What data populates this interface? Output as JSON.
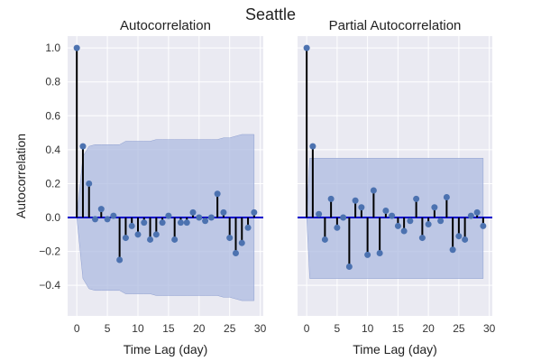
{
  "figure": {
    "title": "Seattle"
  },
  "colors": {
    "background": "#eaeaf2",
    "grid": "#ffffff",
    "band": "#aebbe0",
    "stem": "#000000",
    "marker": "#4c72b0",
    "zero_line": "#0000cc"
  },
  "chart_data": [
    {
      "type": "stem",
      "title": "Autocorrelation",
      "xlabel": "Time Lag (day)",
      "ylabel": "Autocorrelation",
      "xlim": [
        -1.5,
        30.5
      ],
      "ylim": [
        -0.58,
        1.07
      ],
      "xticks": [
        0,
        5,
        10,
        15,
        20,
        25,
        30
      ],
      "yticks": [
        -0.4,
        -0.2,
        0.0,
        0.2,
        0.4,
        0.6,
        0.8,
        1.0
      ],
      "ytick_labels": [
        "−0.4",
        "−0.2",
        "0.0",
        "0.2",
        "0.4",
        "0.6",
        "0.8",
        "1.0"
      ],
      "grid": true,
      "lags": [
        0,
        1,
        2,
        3,
        4,
        5,
        6,
        7,
        8,
        9,
        10,
        11,
        12,
        13,
        14,
        15,
        16,
        17,
        18,
        19,
        20,
        21,
        22,
        23,
        24,
        25,
        26,
        27,
        28,
        29
      ],
      "values": [
        1.0,
        0.42,
        0.2,
        -0.01,
        0.05,
        -0.01,
        0.01,
        -0.25,
        -0.12,
        -0.05,
        -0.1,
        -0.03,
        -0.13,
        -0.1,
        -0.03,
        0.01,
        -0.13,
        -0.03,
        -0.03,
        0.03,
        0.0,
        -0.02,
        0.0,
        0.14,
        0.03,
        -0.12,
        -0.21,
        -0.15,
        -0.06,
        0.03
      ],
      "confidence_band": {
        "lags": [
          0,
          1,
          2,
          3,
          4,
          5,
          6,
          7,
          8,
          9,
          10,
          11,
          12,
          13,
          14,
          15,
          16,
          17,
          18,
          19,
          20,
          21,
          22,
          23,
          24,
          25,
          26,
          27,
          28,
          29
        ],
        "upper": [
          0.0,
          0.36,
          0.42,
          0.43,
          0.43,
          0.43,
          0.43,
          0.43,
          0.45,
          0.45,
          0.45,
          0.45,
          0.45,
          0.46,
          0.46,
          0.46,
          0.46,
          0.46,
          0.46,
          0.46,
          0.46,
          0.46,
          0.46,
          0.46,
          0.47,
          0.47,
          0.48,
          0.49,
          0.49,
          0.49
        ],
        "lower": [
          0.0,
          -0.36,
          -0.42,
          -0.43,
          -0.43,
          -0.43,
          -0.43,
          -0.43,
          -0.45,
          -0.45,
          -0.45,
          -0.45,
          -0.45,
          -0.46,
          -0.46,
          -0.46,
          -0.46,
          -0.46,
          -0.46,
          -0.46,
          -0.46,
          -0.46,
          -0.46,
          -0.46,
          -0.47,
          -0.47,
          -0.48,
          -0.49,
          -0.49,
          -0.49
        ]
      }
    },
    {
      "type": "stem",
      "title": "Partial Autocorrelation",
      "xlabel": "Time Lag (day)",
      "ylabel": "",
      "xlim": [
        -1.5,
        30.5
      ],
      "ylim": [
        -0.58,
        1.07
      ],
      "xticks": [
        0,
        5,
        10,
        15,
        20,
        25,
        30
      ],
      "yticks": [
        -0.4,
        -0.2,
        0.0,
        0.2,
        0.4,
        0.6,
        0.8,
        1.0
      ],
      "ytick_labels": [],
      "grid": true,
      "lags": [
        0,
        1,
        2,
        3,
        4,
        5,
        6,
        7,
        8,
        9,
        10,
        11,
        12,
        13,
        14,
        15,
        16,
        17,
        18,
        19,
        20,
        21,
        22,
        23,
        24,
        25,
        26,
        27,
        28,
        29
      ],
      "values": [
        1.0,
        0.42,
        0.02,
        -0.13,
        0.11,
        -0.06,
        0.0,
        -0.29,
        0.1,
        0.06,
        -0.22,
        0.16,
        -0.21,
        0.04,
        0.01,
        -0.05,
        -0.08,
        -0.02,
        0.11,
        -0.12,
        -0.04,
        0.06,
        -0.02,
        0.12,
        -0.19,
        -0.11,
        -0.13,
        0.01,
        0.03,
        -0.05
      ],
      "confidence_band": {
        "lags": [
          0,
          0.5,
          29
        ],
        "upper": [
          0.0,
          0.35,
          0.35
        ],
        "lower": [
          0.0,
          -0.36,
          -0.36
        ]
      }
    }
  ]
}
